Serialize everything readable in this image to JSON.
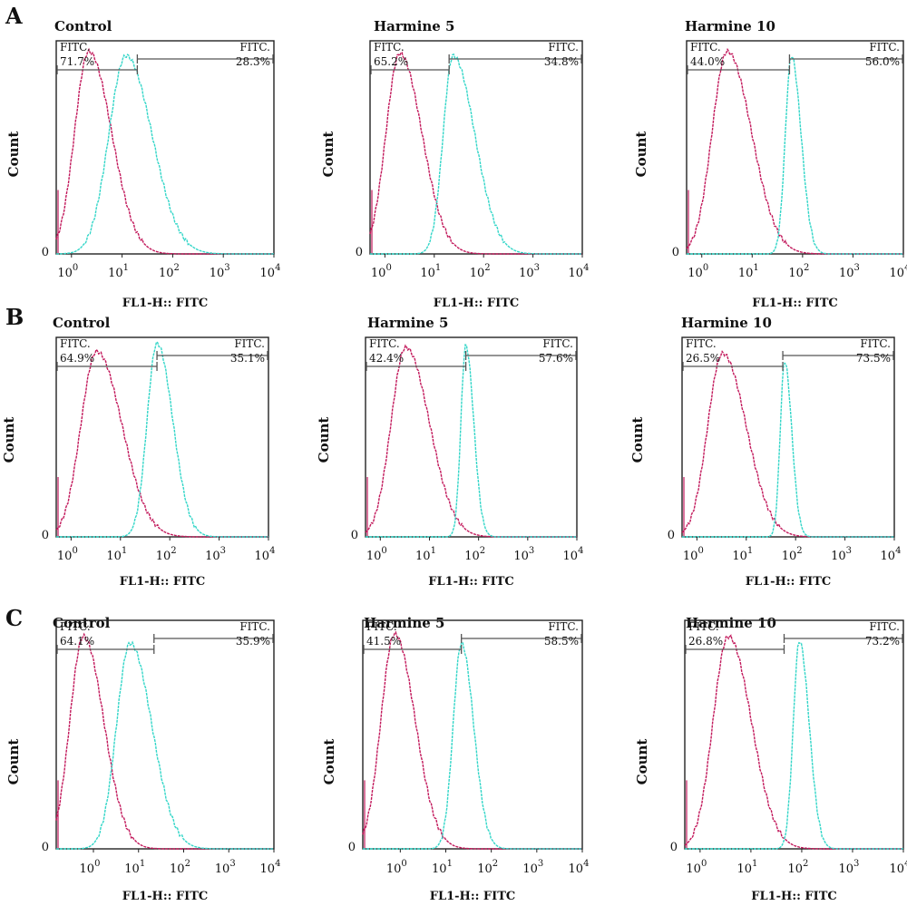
{
  "rows": [
    {
      "label": "A",
      "panels": [
        {
          "title": "Control",
          "ylabel": "Count",
          "xlabel": "FL1-H:: FITC",
          "y_zero_label": "0",
          "gate_left": {
            "name": "FITC.",
            "percent": "71.7%"
          },
          "gate_right": {
            "name": "FITC.",
            "percent": "28.3%"
          }
        },
        {
          "title": "Harmine 5",
          "ylabel": "Count",
          "xlabel": "FL1-H:: FITC",
          "y_zero_label": "0",
          "gate_left": {
            "name": "FITC.",
            "percent": "65.2%"
          },
          "gate_right": {
            "name": "FITC.",
            "percent": "34.8%"
          }
        },
        {
          "title": "Harmine 10",
          "ylabel": "Count",
          "xlabel": "FL1-H:: FITC",
          "y_zero_label": "0",
          "gate_left": {
            "name": "FITC.",
            "percent": "44.0%"
          },
          "gate_right": {
            "name": "FITC.",
            "percent": "56.0%"
          }
        }
      ]
    },
    {
      "label": "B",
      "panels": [
        {
          "title": "Control",
          "ylabel": "Count",
          "xlabel": "FL1-H:: FITC",
          "y_zero_label": "0",
          "gate_left": {
            "name": "FITC.",
            "percent": "64.9%"
          },
          "gate_right": {
            "name": "FITC.",
            "percent": "35.1%"
          }
        },
        {
          "title": "Harmine 5",
          "ylabel": "Count",
          "xlabel": "FL1-H:: FITC",
          "y_zero_label": "0",
          "gate_left": {
            "name": "FITC.",
            "percent": "42.4%"
          },
          "gate_right": {
            "name": "FITC.",
            "percent": "57.6%"
          }
        },
        {
          "title": "Harmine 10",
          "ylabel": "Count",
          "xlabel": "FL1-H:: FITC",
          "y_zero_label": "0",
          "gate_left": {
            "name": "FITC.",
            "percent": "26.5%"
          },
          "gate_right": {
            "name": "FITC.",
            "percent": "73.5%"
          }
        }
      ]
    },
    {
      "label": "C",
      "panels": [
        {
          "title": "Control",
          "ylabel": "Count",
          "xlabel": "FL1-H:: FITC",
          "y_zero_label": "0",
          "gate_left": {
            "name": "FITC.",
            "percent": "64.1%"
          },
          "gate_right": {
            "name": "FITC.",
            "percent": "35.9%"
          }
        },
        {
          "title": "Harmine 5",
          "ylabel": "Count",
          "xlabel": "FL1-H:: FITC",
          "y_zero_label": "0",
          "gate_left": {
            "name": "FITC.",
            "percent": "41.5%"
          },
          "gate_right": {
            "name": "FITC.",
            "percent": "58.5%"
          }
        },
        {
          "title": "Harmine 10",
          "ylabel": "Count",
          "xlabel": "FL1-H:: FITC",
          "y_zero_label": "0",
          "gate_left": {
            "name": "FITC.",
            "percent": "26.8%"
          },
          "gate_right": {
            "name": "FITC.",
            "percent": "73.2%"
          }
        }
      ]
    }
  ],
  "colors": {
    "control_histogram": "#c2185b",
    "fitc_histogram": "#33d6c8",
    "frame": "#222222",
    "gate": "#555555"
  },
  "chart_data": [
    {
      "type": "area",
      "row": "A",
      "title": "Control",
      "xlabel": "FL1-H:: FITC",
      "ylabel": "Count",
      "x_scale": "log",
      "xlim": [
        0.5,
        10000
      ],
      "x_ticks": [
        1,
        10,
        100,
        1000,
        10000
      ],
      "gate_threshold": 20,
      "gate_left_percent": 71.7,
      "gate_right_percent": 28.3,
      "series": [
        {
          "peak_x": 2.2,
          "peak_height": 0.95,
          "width": 0.28,
          "right_tail": 1.6
        },
        {
          "peak_x": 12,
          "peak_height": 0.93,
          "width": 0.34,
          "right_tail": 1.5
        }
      ]
    },
    {
      "type": "area",
      "row": "A",
      "title": "Harmine 5",
      "xlabel": "FL1-H:: FITC",
      "ylabel": "Count",
      "x_scale": "log",
      "xlim": [
        0.5,
        10000
      ],
      "x_ticks": [
        1,
        10,
        100,
        1000,
        10000
      ],
      "gate_threshold": 20,
      "gate_left_percent": 65.2,
      "gate_right_percent": 34.8,
      "series": [
        {
          "peak_x": 2.0,
          "peak_height": 0.94,
          "width": 0.28,
          "right_tail": 1.6
        },
        {
          "peak_x": 24,
          "peak_height": 0.93,
          "width": 0.2,
          "right_tail": 2.2
        }
      ]
    },
    {
      "type": "area",
      "row": "A",
      "title": "Harmine 10",
      "xlabel": "FL1-H:: FITC",
      "ylabel": "Count",
      "x_scale": "log",
      "xlim": [
        0.5,
        10000
      ],
      "x_ticks": [
        1,
        10,
        100,
        1000,
        10000
      ],
      "gate_threshold": 55,
      "gate_left_percent": 44.0,
      "gate_right_percent": 56.0,
      "series": [
        {
          "peak_x": 3.2,
          "peak_height": 0.95,
          "width": 0.3,
          "right_tail": 1.6
        },
        {
          "peak_x": 60,
          "peak_height": 0.93,
          "width": 0.12,
          "right_tail": 1.6
        }
      ]
    },
    {
      "type": "area",
      "row": "B",
      "title": "Control",
      "xlabel": "FL1-H:: FITC",
      "ylabel": "Count",
      "x_scale": "log",
      "xlim": [
        0.5,
        10000
      ],
      "x_ticks": [
        1,
        10,
        100,
        1000,
        10000
      ],
      "gate_threshold": 55,
      "gate_left_percent": 64.9,
      "gate_right_percent": 35.1,
      "series": [
        {
          "peak_x": 3.3,
          "peak_height": 0.93,
          "width": 0.32,
          "right_tail": 1.6
        },
        {
          "peak_x": 55,
          "peak_height": 0.97,
          "width": 0.2,
          "right_tail": 1.6
        }
      ]
    },
    {
      "type": "area",
      "row": "B",
      "title": "Harmine 5",
      "xlabel": "FL1-H:: FITC",
      "ylabel": "Count",
      "x_scale": "log",
      "xlim": [
        0.5,
        10000
      ],
      "x_ticks": [
        1,
        10,
        100,
        1000,
        10000
      ],
      "gate_threshold": 55,
      "gate_left_percent": 42.4,
      "gate_right_percent": 57.6,
      "series": [
        {
          "peak_x": 3.3,
          "peak_height": 0.95,
          "width": 0.3,
          "right_tail": 1.6
        },
        {
          "peak_x": 55,
          "peak_height": 0.96,
          "width": 0.1,
          "right_tail": 1.6
        }
      ]
    },
    {
      "type": "area",
      "row": "B",
      "title": "Harmine 10",
      "xlabel": "FL1-H:: FITC",
      "ylabel": "Count",
      "x_scale": "log",
      "xlim": [
        0.5,
        10000
      ],
      "x_ticks": [
        1,
        10,
        100,
        1000,
        10000
      ],
      "gate_threshold": 55,
      "gate_left_percent": 26.5,
      "gate_right_percent": 73.5,
      "series": [
        {
          "peak_x": 3.3,
          "peak_height": 0.92,
          "width": 0.3,
          "right_tail": 1.6
        },
        {
          "peak_x": 60,
          "peak_height": 0.88,
          "width": 0.09,
          "right_tail": 1.6
        }
      ]
    },
    {
      "type": "area",
      "row": "C",
      "title": "Control",
      "xlabel": "FL1-H:: FITC",
      "ylabel": "Count",
      "x_scale": "log",
      "xlim": [
        0.15,
        10000
      ],
      "x_ticks": [
        1,
        10,
        100,
        1000,
        10000
      ],
      "gate_threshold": 22,
      "gate_left_percent": 64.1,
      "gate_right_percent": 35.9,
      "series": [
        {
          "peak_x": 0.6,
          "peak_height": 0.93,
          "width": 0.3,
          "right_tail": 1.5
        },
        {
          "peak_x": 6.5,
          "peak_height": 0.9,
          "width": 0.3,
          "right_tail": 1.6
        }
      ]
    },
    {
      "type": "area",
      "row": "C",
      "title": "Harmine 5",
      "xlabel": "FL1-H:: FITC",
      "ylabel": "Count",
      "x_scale": "log",
      "xlim": [
        0.15,
        10000
      ],
      "x_ticks": [
        1,
        10,
        100,
        1000,
        10000
      ],
      "gate_threshold": 22,
      "gate_left_percent": 41.5,
      "gate_right_percent": 58.5,
      "series": [
        {
          "peak_x": 0.75,
          "peak_height": 0.94,
          "width": 0.3,
          "right_tail": 1.5
        },
        {
          "peak_x": 22,
          "peak_height": 0.9,
          "width": 0.18,
          "right_tail": 1.5
        }
      ]
    },
    {
      "type": "area",
      "row": "C",
      "title": "Harmine 10",
      "xlabel": "FL1-H:: FITC",
      "ylabel": "Count",
      "x_scale": "log",
      "xlim": [
        0.5,
        10000
      ],
      "x_ticks": [
        1,
        10,
        100,
        1000,
        10000
      ],
      "gate_threshold": 45,
      "gate_left_percent": 26.8,
      "gate_right_percent": 73.2,
      "series": [
        {
          "peak_x": 3.6,
          "peak_height": 0.93,
          "width": 0.3,
          "right_tail": 1.5
        },
        {
          "peak_x": 90,
          "peak_height": 0.91,
          "width": 0.12,
          "right_tail": 1.6
        }
      ]
    }
  ]
}
